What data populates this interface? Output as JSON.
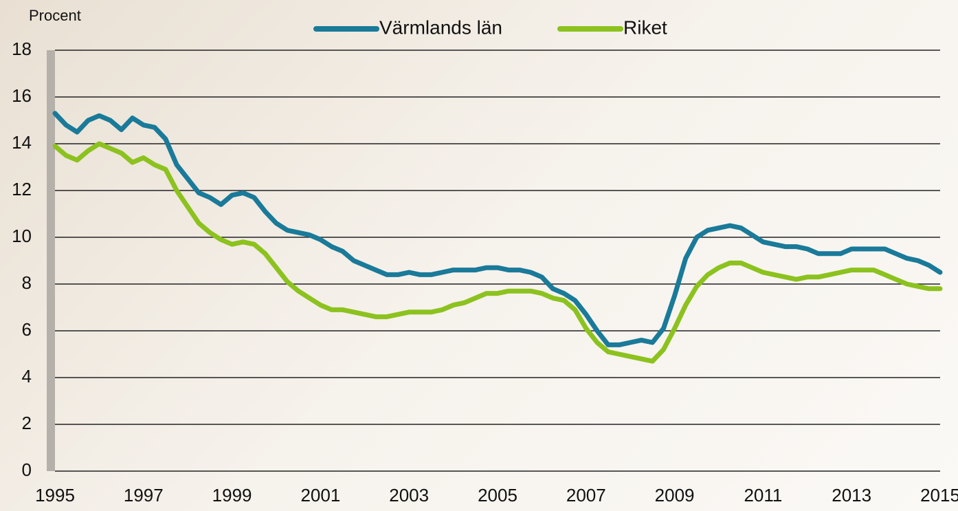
{
  "chart_data": {
    "type": "line",
    "ylabel": "Procent",
    "x": [
      1995,
      1995.25,
      1995.5,
      1995.75,
      1996,
      1996.25,
      1996.5,
      1996.75,
      1997,
      1997.25,
      1997.5,
      1997.75,
      1998,
      1998.25,
      1998.5,
      1998.75,
      1999,
      1999.25,
      1999.5,
      1999.75,
      2000,
      2000.25,
      2000.5,
      2000.75,
      2001,
      2001.25,
      2001.5,
      2001.75,
      2002,
      2002.25,
      2002.5,
      2002.75,
      2003,
      2003.25,
      2003.5,
      2003.75,
      2004,
      2004.25,
      2004.5,
      2004.75,
      2005,
      2005.25,
      2005.5,
      2005.75,
      2006,
      2006.25,
      2006.5,
      2006.75,
      2007,
      2007.25,
      2007.5,
      2007.75,
      2008,
      2008.25,
      2008.5,
      2008.75,
      2009,
      2009.25,
      2009.5,
      2009.75,
      2010,
      2010.25,
      2010.5,
      2010.75,
      2011,
      2011.25,
      2011.5,
      2011.75,
      2012,
      2012.25,
      2012.5,
      2012.75,
      2013,
      2013.25,
      2013.5,
      2013.75,
      2014,
      2014.25,
      2014.5,
      2014.75,
      2015
    ],
    "series": [
      {
        "name": "Värmlands län",
        "color": "#1a7a99",
        "values": [
          15.3,
          14.8,
          14.5,
          15.0,
          15.2,
          15.0,
          14.6,
          15.1,
          14.8,
          14.7,
          14.2,
          13.1,
          12.5,
          11.9,
          11.7,
          11.4,
          11.8,
          11.9,
          11.7,
          11.1,
          10.6,
          10.3,
          10.2,
          10.1,
          9.9,
          9.6,
          9.4,
          9.0,
          8.8,
          8.6,
          8.4,
          8.4,
          8.5,
          8.4,
          8.4,
          8.5,
          8.6,
          8.6,
          8.6,
          8.7,
          8.7,
          8.6,
          8.6,
          8.5,
          8.3,
          7.8,
          7.6,
          7.3,
          6.7,
          6.0,
          5.4,
          5.4,
          5.5,
          5.6,
          5.5,
          6.1,
          7.5,
          9.1,
          10.0,
          10.3,
          10.4,
          10.5,
          10.4,
          10.1,
          9.8,
          9.7,
          9.6,
          9.6,
          9.5,
          9.3,
          9.3,
          9.3,
          9.5,
          9.5,
          9.5,
          9.5,
          9.3,
          9.1,
          9.0,
          8.8,
          8.5
        ]
      },
      {
        "name": "Riket",
        "color": "#8cc21e",
        "values": [
          13.9,
          13.5,
          13.3,
          13.7,
          14.0,
          13.8,
          13.6,
          13.2,
          13.4,
          13.1,
          12.9,
          12.0,
          11.3,
          10.6,
          10.2,
          9.9,
          9.7,
          9.8,
          9.7,
          9.3,
          8.7,
          8.1,
          7.7,
          7.4,
          7.1,
          6.9,
          6.9,
          6.8,
          6.7,
          6.6,
          6.6,
          6.7,
          6.8,
          6.8,
          6.8,
          6.9,
          7.1,
          7.2,
          7.4,
          7.6,
          7.6,
          7.7,
          7.7,
          7.7,
          7.6,
          7.4,
          7.3,
          6.9,
          6.1,
          5.5,
          5.1,
          5.0,
          4.9,
          4.8,
          4.7,
          5.2,
          6.1,
          7.1,
          7.9,
          8.4,
          8.7,
          8.9,
          8.9,
          8.7,
          8.5,
          8.4,
          8.3,
          8.2,
          8.3,
          8.3,
          8.4,
          8.5,
          8.6,
          8.6,
          8.6,
          8.4,
          8.2,
          8.0,
          7.9,
          7.8,
          7.8
        ]
      }
    ],
    "xlim": [
      1995,
      2015
    ],
    "xticks": [
      1995,
      1997,
      1999,
      2001,
      2003,
      2005,
      2007,
      2009,
      2011,
      2013,
      2015
    ],
    "ylim": [
      0,
      18
    ],
    "yticks": [
      0,
      2,
      4,
      6,
      8,
      10,
      12,
      14,
      16,
      18
    ],
    "grid": true,
    "legend": "top"
  }
}
